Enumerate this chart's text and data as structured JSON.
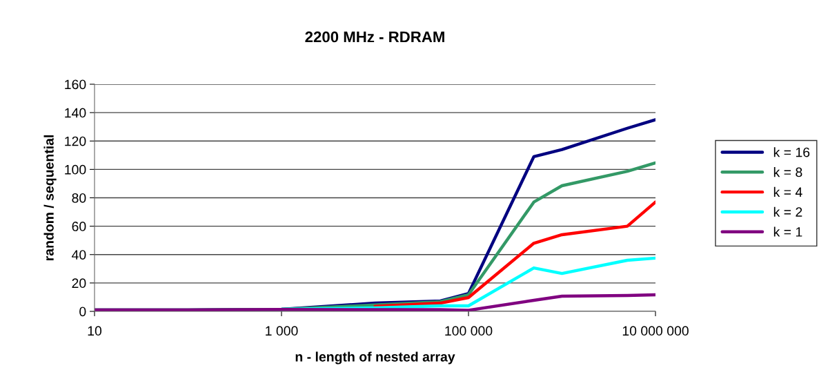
{
  "chart_data": {
    "type": "line",
    "title": "2200 MHz - RDRAM",
    "xlabel": "n - length of nested array",
    "ylabel": "random / sequential",
    "x": [
      10,
      100,
      1000,
      10000,
      50000,
      100000,
      500000,
      1000000,
      5000000,
      10000000
    ],
    "series": [
      {
        "name": "k = 16",
        "color": "#000080",
        "values": [
          1,
          1,
          1.5,
          5.8,
          7.3,
          12.6,
          109,
          114,
          129,
          135
        ]
      },
      {
        "name": "k = 8",
        "color": "#339966",
        "values": [
          1,
          1,
          1.5,
          4.5,
          6.8,
          11.7,
          77,
          88.5,
          98.7,
          104.6
        ]
      },
      {
        "name": "k = 4",
        "color": "#ff0000",
        "values": [
          null,
          null,
          null,
          3.5,
          5.8,
          9.7,
          48,
          54,
          60,
          77
        ]
      },
      {
        "name": "k = 2",
        "color": "#00ffff",
        "values": [
          null,
          null,
          1.5,
          2.5,
          3.9,
          3.9,
          30.6,
          26.7,
          36,
          37.5
        ]
      },
      {
        "name": "k = 1",
        "color": "#800080",
        "values": [
          1,
          1,
          1.3,
          1.2,
          1.2,
          0.8,
          7.8,
          10.7,
          11.2,
          11.7
        ]
      }
    ],
    "log": "x",
    "xlim": [
      10,
      10000000
    ],
    "xticks": [
      10,
      {
        "value": 1000,
        "label": "1 000"
      },
      {
        "value": 100000,
        "label": "100 000"
      },
      {
        "value": 10000000,
        "label": "10 000 000"
      }
    ],
    "ylim": [
      0,
      160
    ],
    "yticks": [
      0,
      20,
      40,
      60,
      80,
      100,
      120,
      140,
      160
    ],
    "grid": "y",
    "legend": "right",
    "marker": "none",
    "line_style": "solid"
  }
}
